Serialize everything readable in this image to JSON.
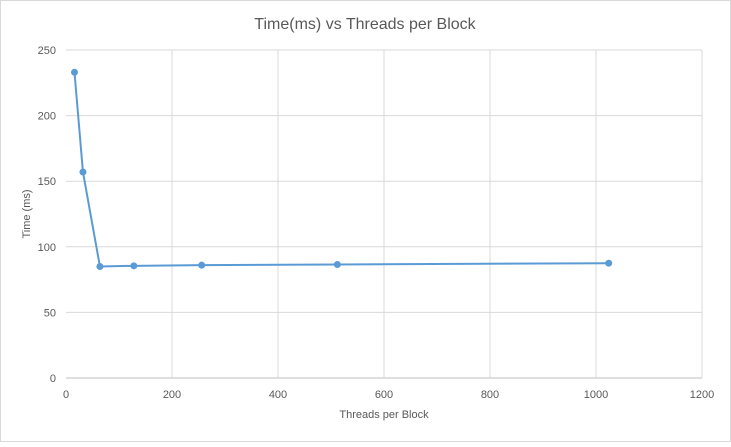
{
  "chart_data": {
    "type": "scatter",
    "title": "Time(ms) vs Threads per Block",
    "xlabel": "Threads per Block",
    "ylabel": "Time (ms)",
    "xlim": [
      0,
      1200
    ],
    "ylim": [
      0,
      250
    ],
    "xticks": [
      0,
      200,
      400,
      600,
      800,
      1000,
      1200
    ],
    "yticks": [
      0,
      50,
      100,
      150,
      200,
      250
    ],
    "grid": true,
    "legend": "none",
    "series": [
      {
        "x": [
          16,
          32,
          64,
          128,
          256,
          512,
          1024
        ],
        "y": [
          233,
          157,
          85,
          85.5,
          86,
          86.5,
          87.5
        ],
        "color": "#5b9bd5",
        "line": "straight",
        "markers": true
      }
    ]
  }
}
